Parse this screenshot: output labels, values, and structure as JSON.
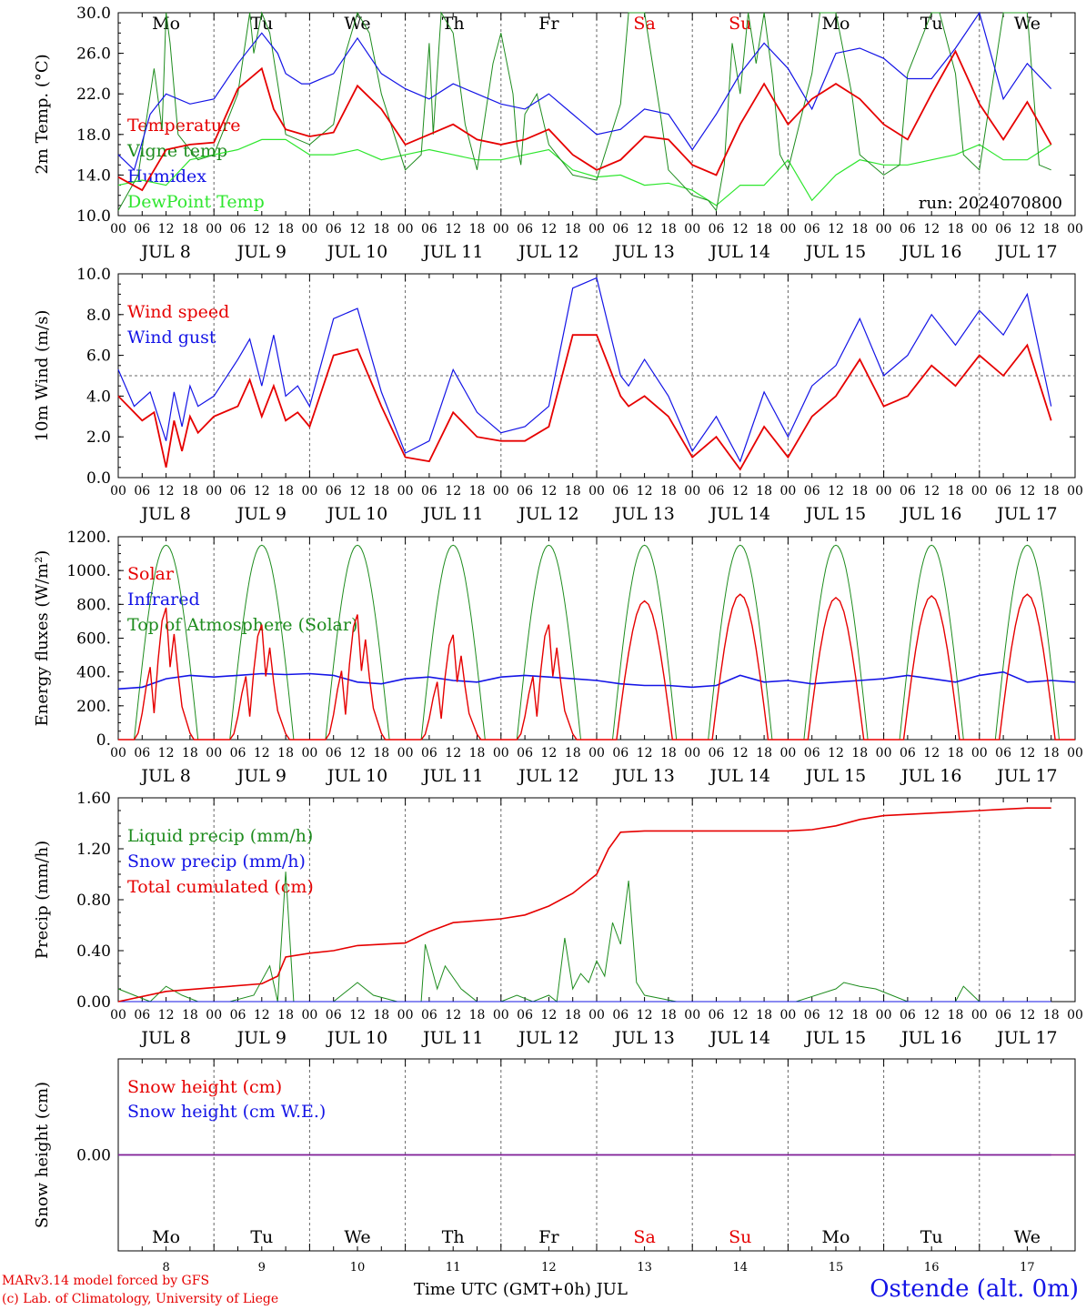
{
  "colors": {
    "red": "#e60000",
    "green": "#1e8c1e",
    "blue": "#1414e6",
    "lightgreen": "#2ee62e",
    "purple": "#8c1e8c",
    "grid": "#666666"
  },
  "footer": {
    "model": "MARv3.14 model forced by GFS",
    "lab": "(c) Lab. of Climatology, University of Liege",
    "xlabel": "Time UTC (GMT+0h) JUL",
    "station": "Ostende (alt. 0m)"
  },
  "run_label": "run: 2024070800",
  "days": [
    {
      "dow": "Mo",
      "date": "8",
      "weekend": false
    },
    {
      "dow": "Tu",
      "date": "9",
      "weekend": false
    },
    {
      "dow": "We",
      "date": "10",
      "weekend": false
    },
    {
      "dow": "Th",
      "date": "11",
      "weekend": false
    },
    {
      "dow": "Fr",
      "date": "12",
      "weekend": false
    },
    {
      "dow": "Sa",
      "date": "13",
      "weekend": true
    },
    {
      "dow": "Su",
      "date": "14",
      "weekend": true
    },
    {
      "dow": "Mo",
      "date": "15",
      "weekend": false
    },
    {
      "dow": "Tu",
      "date": "16",
      "weekend": false
    },
    {
      "dow": "We",
      "date": "17",
      "weekend": false
    }
  ],
  "hour_ticks": [
    "00",
    "06",
    "12",
    "18"
  ],
  "hour_ticks_end": "00",
  "date_labels": [
    "JUL  8",
    "JUL  9",
    "JUL 10",
    "JUL 11",
    "JUL 12",
    "JUL 13",
    "JUL 14",
    "JUL 15",
    "JUL 16",
    "JUL 17"
  ],
  "chart_data": [
    {
      "type": "line",
      "ylabel": "2m Temp. (°C)",
      "ylim": [
        10,
        30
      ],
      "yticks": [
        "10.0",
        "14.0",
        "18.0",
        "22.0",
        "26.0",
        "30.0"
      ],
      "series": [
        {
          "name": "Temperature",
          "color": "red",
          "x_hours": [
            0,
            6,
            12,
            18,
            24,
            30,
            36,
            39,
            42,
            48,
            54,
            60,
            66,
            72,
            78,
            84,
            90,
            96,
            102,
            108,
            114,
            120,
            126,
            132,
            138,
            144,
            150,
            156,
            162,
            168,
            174,
            180,
            186,
            192,
            198,
            204,
            210,
            216,
            222,
            228,
            234
          ],
          "values": [
            13.8,
            12.5,
            16.5,
            17.0,
            17.2,
            22.5,
            24.5,
            20.5,
            18.5,
            17.8,
            18.2,
            22.8,
            20.5,
            17.0,
            18.0,
            19.0,
            17.5,
            17.0,
            17.5,
            18.5,
            16.0,
            14.5,
            15.5,
            17.8,
            17.5,
            15.0,
            14.0,
            19.0,
            23.0,
            19.0,
            21.5,
            23.0,
            21.5,
            19.0,
            17.5,
            22.0,
            26.2,
            21.0,
            17.5,
            21.2,
            17.0
          ]
        },
        {
          "name": "Vigne temp",
          "color": "green",
          "x_hours": [
            0,
            5,
            9,
            11,
            12,
            13,
            15,
            20,
            24,
            30,
            33,
            34,
            36,
            38,
            42,
            48,
            54,
            57,
            60,
            63,
            66,
            72,
            76,
            78,
            79,
            81,
            84,
            87,
            90,
            94,
            96,
            99,
            100,
            101,
            102,
            105,
            108,
            114,
            120,
            126,
            128,
            132,
            136,
            138,
            144,
            148,
            150,
            152,
            154,
            156,
            158,
            160,
            162,
            164,
            166,
            168,
            174,
            176,
            180,
            184,
            186,
            192,
            196,
            198,
            204,
            206,
            210,
            212,
            216,
            222,
            228,
            231,
            234
          ],
          "values": [
            10.5,
            14.0,
            24.5,
            18.5,
            30.0,
            27.0,
            18.0,
            15.5,
            16.0,
            22.0,
            30.0,
            26.0,
            30.0,
            28.0,
            18.0,
            17.0,
            19.0,
            26.0,
            30.0,
            28.0,
            22.0,
            14.5,
            16.0,
            27.0,
            18.0,
            30.0,
            28.0,
            19.0,
            14.5,
            25.0,
            28.0,
            22.0,
            17.0,
            15.0,
            20.0,
            22.0,
            17.0,
            14.0,
            13.5,
            21.0,
            30.0,
            30.0,
            20.0,
            14.5,
            12.0,
            11.5,
            10.5,
            15.0,
            27.0,
            22.0,
            30.0,
            25.0,
            30.0,
            24.0,
            16.0,
            14.5,
            24.0,
            30.0,
            30.0,
            22.0,
            16.0,
            14.0,
            15.0,
            24.0,
            30.0,
            30.0,
            24.0,
            16.0,
            14.5,
            30.0,
            30.0,
            15.0,
            14.5
          ]
        },
        {
          "name": "Humidex",
          "color": "blue",
          "x_hours": [
            0,
            4,
            8,
            12,
            18,
            24,
            30,
            36,
            40,
            42,
            46,
            48,
            54,
            60,
            66,
            72,
            78,
            84,
            90,
            96,
            102,
            108,
            114,
            120,
            126,
            132,
            138,
            144,
            150,
            156,
            162,
            168,
            174,
            180,
            186,
            192,
            198,
            204,
            210,
            216,
            222,
            228,
            234
          ],
          "values": [
            16.0,
            14.5,
            20.0,
            22.0,
            21.0,
            21.5,
            25.0,
            28.0,
            26.0,
            24.0,
            23.0,
            23.0,
            24.0,
            27.5,
            24.0,
            22.5,
            21.5,
            23.0,
            22.0,
            21.0,
            20.5,
            22.0,
            20.0,
            18.0,
            18.5,
            20.5,
            20.0,
            16.5,
            20.0,
            24.0,
            27.0,
            24.5,
            20.5,
            26.0,
            26.5,
            25.5,
            23.5,
            23.5,
            26.5,
            30.0,
            21.5,
            25.0,
            22.5
          ]
        },
        {
          "name": "DewPoint Temp",
          "color": "lightgreen",
          "x_hours": [
            0,
            6,
            12,
            18,
            24,
            30,
            36,
            42,
            48,
            54,
            60,
            66,
            72,
            78,
            84,
            90,
            96,
            102,
            108,
            114,
            120,
            126,
            132,
            138,
            144,
            150,
            156,
            162,
            168,
            174,
            180,
            186,
            192,
            198,
            204,
            210,
            216,
            222,
            228,
            234
          ],
          "values": [
            13.0,
            13.5,
            13.0,
            15.5,
            16.0,
            16.5,
            17.5,
            17.5,
            16.0,
            16.0,
            16.5,
            15.5,
            16.0,
            16.5,
            16.0,
            15.5,
            15.5,
            16.0,
            16.5,
            14.5,
            13.8,
            14.0,
            13.0,
            13.2,
            12.5,
            11.0,
            13.0,
            13.0,
            15.5,
            11.5,
            14.0,
            15.5,
            15.0,
            15.0,
            15.5,
            16.0,
            17.0,
            15.5,
            15.5,
            17.0
          ]
        }
      ],
      "annotations": [
        "run: 2024070800"
      ]
    },
    {
      "type": "line",
      "ylabel": "10m Wind (m/s)",
      "ylim": [
        0,
        10
      ],
      "yticks": [
        "0.0",
        "2.0",
        "4.0",
        "6.0",
        "8.0",
        "10.0"
      ],
      "reference_line": 5,
      "series": [
        {
          "name": "Wind speed",
          "color": "red",
          "x_hours": [
            0,
            6,
            9,
            12,
            14,
            16,
            18,
            20,
            24,
            30,
            33,
            36,
            39,
            42,
            45,
            48,
            54,
            60,
            66,
            72,
            78,
            84,
            90,
            96,
            102,
            108,
            114,
            120,
            126,
            128,
            132,
            138,
            144,
            150,
            156,
            162,
            168,
            174,
            180,
            186,
            192,
            198,
            204,
            210,
            216,
            222,
            228,
            234
          ],
          "values": [
            4.0,
            2.8,
            3.2,
            0.5,
            2.8,
            1.3,
            3.0,
            2.2,
            3.0,
            3.5,
            4.8,
            3.0,
            4.5,
            2.8,
            3.2,
            2.5,
            6.0,
            6.3,
            3.5,
            1.0,
            0.8,
            3.2,
            2.0,
            1.8,
            1.8,
            2.5,
            7.0,
            7.0,
            4.0,
            3.5,
            4.0,
            3.0,
            1.0,
            2.0,
            0.4,
            2.5,
            1.0,
            3.0,
            4.0,
            5.8,
            3.5,
            4.0,
            5.5,
            4.5,
            6.0,
            5.0,
            6.5,
            2.8
          ]
        },
        {
          "name": "Wind gust",
          "color": "blue",
          "x_hours": [
            0,
            4,
            8,
            12,
            14,
            16,
            18,
            20,
            24,
            30,
            33,
            36,
            39,
            42,
            45,
            48,
            54,
            60,
            66,
            72,
            78,
            84,
            90,
            96,
            102,
            108,
            114,
            120,
            126,
            128,
            132,
            138,
            144,
            150,
            156,
            162,
            168,
            174,
            180,
            186,
            192,
            198,
            204,
            210,
            216,
            222,
            228,
            234
          ],
          "values": [
            5.3,
            3.5,
            4.2,
            1.8,
            4.2,
            2.5,
            4.5,
            3.5,
            4.0,
            5.8,
            6.8,
            4.5,
            7.0,
            4.0,
            4.5,
            3.5,
            7.8,
            8.3,
            4.2,
            1.2,
            1.8,
            5.3,
            3.2,
            2.2,
            2.5,
            3.5,
            9.3,
            9.8,
            5.0,
            4.5,
            5.8,
            4.0,
            1.3,
            3.0,
            0.8,
            4.2,
            2.0,
            4.5,
            5.5,
            7.8,
            5.0,
            6.0,
            8.0,
            6.5,
            8.2,
            7.0,
            9.0,
            3.5
          ]
        }
      ]
    },
    {
      "type": "line",
      "ylabel": "Energy fluxes (W/m²)",
      "ylim": [
        0,
        1200
      ],
      "yticks": [
        "0.",
        "200.",
        "400.",
        "600.",
        "800.",
        "1000.",
        "1200."
      ],
      "series": [
        {
          "name": "Solar",
          "color": "red",
          "peaks": [
            780,
            680,
            740,
            620,
            680,
            820,
            860,
            840,
            850,
            860
          ]
        },
        {
          "name": "Infrared",
          "color": "blue",
          "values_hourly6": [
            300,
            310,
            360,
            380,
            370,
            380,
            390,
            385,
            390,
            380,
            340,
            330,
            360,
            370,
            350,
            340,
            370,
            380,
            370,
            360,
            350,
            330,
            320,
            320,
            310,
            320,
            380,
            340,
            350,
            330,
            340,
            350,
            360,
            380,
            360,
            340,
            380,
            400,
            340,
            350,
            340
          ]
        },
        {
          "name": "Top of Atmosphere (Solar)",
          "color": "green",
          "peak": 1150,
          "sunrise_hour": 4,
          "sunset_hour": 20
        }
      ]
    },
    {
      "type": "line",
      "ylabel": "Precip (mm/h)",
      "ylim": [
        0,
        1.6
      ],
      "yticks": [
        "0.00",
        "0.40",
        "0.80",
        "1.20",
        "1.60"
      ],
      "series": [
        {
          "name": "Liquid precip (mm/h)",
          "color": "green",
          "x_hours": [
            0,
            4,
            8,
            12,
            16,
            20,
            28,
            34,
            38,
            40,
            42,
            44,
            46,
            48,
            54,
            60,
            64,
            70,
            72,
            76,
            77,
            80,
            82,
            86,
            90,
            96,
            100,
            104,
            108,
            110,
            112,
            114,
            116,
            118,
            120,
            122,
            124,
            126,
            128,
            130,
            132,
            140,
            160,
            170,
            180,
            182,
            186,
            190,
            194,
            198,
            204,
            210,
            212,
            216,
            222,
            228,
            234
          ],
          "values": [
            0.1,
            0.05,
            0.0,
            0.12,
            0.05,
            0.0,
            0.0,
            0.05,
            0.28,
            0.0,
            1.02,
            0.0,
            0.0,
            0.0,
            0.0,
            0.15,
            0.05,
            0.0,
            0.0,
            0.0,
            0.45,
            0.1,
            0.28,
            0.1,
            0.0,
            0.0,
            0.05,
            0.0,
            0.05,
            0.0,
            0.5,
            0.1,
            0.22,
            0.15,
            0.32,
            0.2,
            0.62,
            0.45,
            0.95,
            0.15,
            0.05,
            0.0,
            0.0,
            0.0,
            0.1,
            0.15,
            0.12,
            0.1,
            0.05,
            0.0,
            0.0,
            0.0,
            0.12,
            0.0,
            0.0,
            0.0,
            0.0
          ]
        },
        {
          "name": "Snow precip (mm/h)",
          "color": "blue",
          "x_hours": [
            0,
            234
          ],
          "values": [
            0.0,
            0.0
          ]
        },
        {
          "name": "Total cumulated (cm)",
          "color": "red",
          "x_hours": [
            0,
            12,
            24,
            36,
            40,
            42,
            48,
            54,
            60,
            72,
            78,
            84,
            96,
            102,
            108,
            114,
            120,
            123,
            126,
            132,
            144,
            156,
            168,
            174,
            180,
            186,
            192,
            198,
            204,
            210,
            216,
            222,
            228,
            234
          ],
          "values": [
            0.0,
            0.08,
            0.11,
            0.14,
            0.2,
            0.35,
            0.38,
            0.4,
            0.44,
            0.46,
            0.55,
            0.62,
            0.65,
            0.68,
            0.75,
            0.85,
            1.0,
            1.2,
            1.33,
            1.34,
            1.34,
            1.34,
            1.34,
            1.35,
            1.38,
            1.43,
            1.46,
            1.47,
            1.48,
            1.49,
            1.5,
            1.51,
            1.52,
            1.52
          ]
        }
      ]
    },
    {
      "type": "line",
      "ylabel": "Snow height (cm)",
      "ylim": [
        -1,
        1
      ],
      "yticks": [
        "0.00"
      ],
      "series": [
        {
          "name": "Snow height (cm)",
          "color": "red",
          "x_hours": [
            0,
            234
          ],
          "values": [
            0.0,
            0.0
          ]
        },
        {
          "name": "Snow height (cm W.E.)",
          "color": "blue",
          "x_hours": [
            0,
            234
          ],
          "values": [
            0.0,
            0.0
          ]
        }
      ]
    }
  ]
}
